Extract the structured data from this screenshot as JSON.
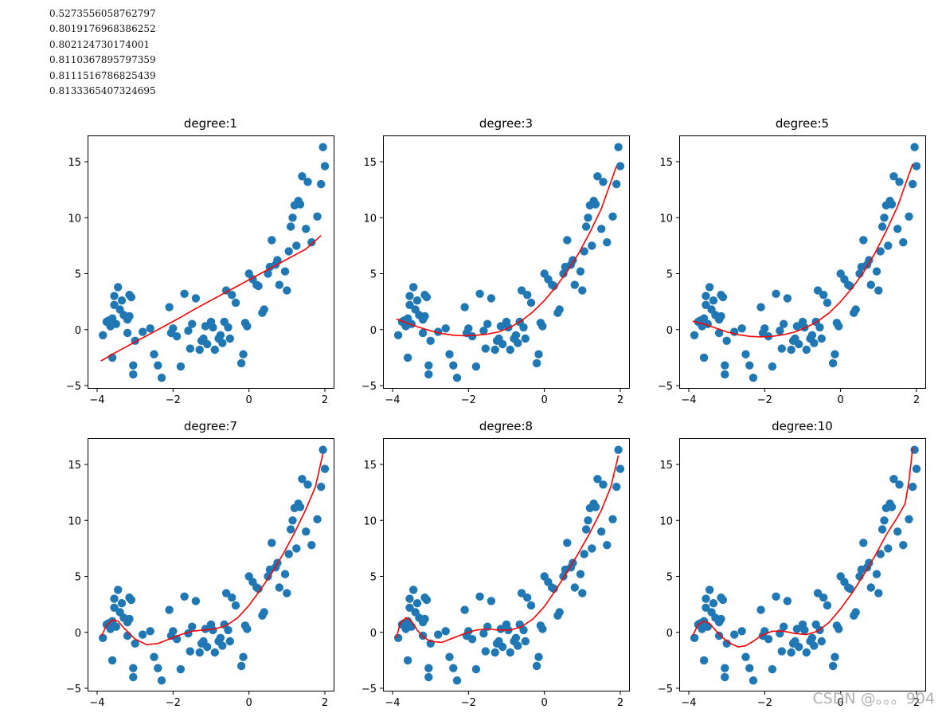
{
  "console_output": [
    "0.5273556058762797",
    "0.8019176968386252",
    "0.802124730174001",
    "0.8110367895797359",
    "0.8111516786825439",
    "0.8133365407324695"
  ],
  "watermark": "CSDN @。。。904",
  "colors": {
    "points": "#1f77b4",
    "fit_line": "#ff0000",
    "axes": "#000000"
  },
  "chart_data": [
    {
      "type": "scatter+line",
      "title": "degree:1",
      "xlim": [
        -4,
        2
      ],
      "ylim": [
        -5,
        17
      ],
      "xticks": [
        -4,
        -2,
        0,
        2
      ],
      "xtick_labels": [
        "−4",
        "−2",
        "0",
        "2"
      ],
      "yticks": [
        -5,
        0,
        5,
        10,
        15
      ],
      "ytick_labels": [
        "−5",
        "0",
        "5",
        "10",
        "15"
      ],
      "fit": {
        "x": [
          -3.9,
          -3.6,
          -3.3,
          -3.0,
          -2.7,
          -2.4,
          -2.1,
          -1.8,
          -1.5,
          -1.2,
          -0.9,
          -0.6,
          -0.3,
          0,
          0.3,
          0.6,
          0.9,
          1.2,
          1.5,
          1.9
        ],
        "y": [
          -2.8,
          -2.2,
          -1.65,
          -1.1,
          -0.55,
          0.0,
          0.55,
          1.1,
          1.7,
          2.25,
          2.8,
          3.35,
          3.9,
          4.45,
          5.0,
          5.55,
          6.1,
          6.65,
          7.2,
          8.4
        ]
      }
    },
    {
      "type": "scatter+line",
      "title": "degree:3",
      "xlim": [
        -4,
        2
      ],
      "ylim": [
        -5,
        17
      ],
      "xticks": [
        -4,
        -2,
        0,
        2
      ],
      "xtick_labels": [
        "−4",
        "−2",
        "0",
        "2"
      ],
      "yticks": [
        -5,
        0,
        5,
        10,
        15
      ],
      "ytick_labels": [
        "−5",
        "0",
        "5",
        "10",
        "15"
      ],
      "fit": {
        "x": [
          -3.9,
          -3.6,
          -3.3,
          -3.0,
          -2.7,
          -2.4,
          -2.1,
          -1.8,
          -1.5,
          -1.2,
          -0.9,
          -0.6,
          -0.3,
          0,
          0.3,
          0.6,
          0.9,
          1.2,
          1.5,
          1.9
        ],
        "y": [
          0.95,
          0.55,
          0.2,
          -0.1,
          -0.35,
          -0.5,
          -0.55,
          -0.5,
          -0.4,
          -0.2,
          0.2,
          0.8,
          1.6,
          2.6,
          3.8,
          5.2,
          6.8,
          8.7,
          10.8,
          14.6
        ]
      }
    },
    {
      "type": "scatter+line",
      "title": "degree:5",
      "xlim": [
        -4,
        2
      ],
      "ylim": [
        -5,
        17
      ],
      "xticks": [
        -4,
        -2,
        0,
        2
      ],
      "xtick_labels": [
        "−4",
        "−2",
        "0",
        "2"
      ],
      "yticks": [
        -5,
        0,
        5,
        10,
        15
      ],
      "ytick_labels": [
        "−5",
        "0",
        "5",
        "10",
        "15"
      ],
      "fit": {
        "x": [
          -3.9,
          -3.6,
          -3.3,
          -3.0,
          -2.7,
          -2.4,
          -2.1,
          -1.8,
          -1.5,
          -1.2,
          -0.9,
          -0.6,
          -0.3,
          0,
          0.3,
          0.6,
          0.9,
          1.2,
          1.5,
          1.9
        ],
        "y": [
          0.75,
          0.5,
          0.15,
          -0.2,
          -0.45,
          -0.6,
          -0.65,
          -0.6,
          -0.45,
          -0.2,
          0.2,
          0.75,
          1.5,
          2.5,
          3.7,
          5.1,
          6.8,
          8.8,
          11.0,
          14.8
        ]
      }
    },
    {
      "type": "scatter+line",
      "title": "degree:7",
      "xlim": [
        -4,
        2
      ],
      "ylim": [
        -5,
        17
      ],
      "xticks": [
        -4,
        -2,
        0,
        2
      ],
      "xtick_labels": [
        "−4",
        "−2",
        "0",
        "2"
      ],
      "yticks": [
        -5,
        0,
        5,
        10,
        15
      ],
      "ytick_labels": [
        "−5",
        "0",
        "5",
        "10",
        "15"
      ],
      "fit": {
        "x": [
          -3.9,
          -3.75,
          -3.6,
          -3.45,
          -3.3,
          -3.0,
          -2.7,
          -2.4,
          -2.1,
          -1.8,
          -1.5,
          -1.2,
          -0.9,
          -0.6,
          -0.3,
          0,
          0.3,
          0.6,
          0.9,
          1.2,
          1.5,
          1.75,
          1.95
        ],
        "y": [
          -0.4,
          0.6,
          1.1,
          1.0,
          0.4,
          -0.6,
          -1.1,
          -1.0,
          -0.6,
          -0.2,
          0.1,
          0.2,
          0.3,
          0.6,
          1.3,
          2.4,
          3.8,
          5.3,
          7.0,
          8.9,
          11.0,
          13.0,
          16.0
        ]
      }
    },
    {
      "type": "scatter+line",
      "title": "degree:8",
      "xlim": [
        -4,
        2
      ],
      "ylim": [
        -5,
        17
      ],
      "xticks": [
        -4,
        -2,
        0,
        2
      ],
      "xtick_labels": [
        "−4",
        "−2",
        "0",
        "2"
      ],
      "yticks": [
        -5,
        0,
        5,
        10,
        15
      ],
      "ytick_labels": [
        "−5",
        "0",
        "5",
        "10",
        "15"
      ],
      "fit": {
        "x": [
          -3.9,
          -3.8,
          -3.65,
          -3.5,
          -3.35,
          -3.2,
          -3.0,
          -2.7,
          -2.4,
          -2.1,
          -1.8,
          -1.5,
          -1.2,
          -0.9,
          -0.6,
          -0.3,
          0,
          0.3,
          0.6,
          0.9,
          1.2,
          1.5,
          1.75,
          1.95
        ],
        "y": [
          -0.5,
          0.8,
          1.3,
          1.0,
          0.2,
          -0.4,
          -0.8,
          -0.9,
          -0.5,
          -0.1,
          0.2,
          0.3,
          0.2,
          0.2,
          0.5,
          1.2,
          2.3,
          3.8,
          5.4,
          7.1,
          8.9,
          10.9,
          13.0,
          15.8
        ]
      }
    },
    {
      "type": "scatter+line",
      "title": "degree:10",
      "xlim": [
        -4,
        2
      ],
      "ylim": [
        -5,
        17
      ],
      "xticks": [
        -4,
        -2,
        0,
        2
      ],
      "xtick_labels": [
        "−4",
        "−2",
        "0",
        "2"
      ],
      "yticks": [
        -5,
        0,
        5,
        10,
        15
      ],
      "ytick_labels": [
        "−5",
        "0",
        "5",
        "10",
        "15"
      ],
      "fit": {
        "x": [
          -3.9,
          -3.75,
          -3.6,
          -3.45,
          -3.3,
          -3.1,
          -2.9,
          -2.7,
          -2.5,
          -2.3,
          -2.1,
          -1.8,
          -1.5,
          -1.2,
          -0.9,
          -0.6,
          -0.3,
          0,
          0.3,
          0.6,
          0.9,
          1.2,
          1.5,
          1.7,
          1.8,
          1.9
        ],
        "y": [
          -0.3,
          0.7,
          1.0,
          0.8,
          0.2,
          -0.5,
          -1.0,
          -1.3,
          -1.2,
          -0.8,
          -0.3,
          0.1,
          0.1,
          -0.1,
          -0.2,
          0.1,
          0.9,
          2.1,
          3.5,
          5.1,
          6.8,
          8.7,
          10.3,
          11.5,
          13.5,
          16.5
        ]
      }
    }
  ],
  "scatter_points": {
    "x": [
      -3.85,
      -3.75,
      -3.7,
      -3.65,
      -3.6,
      -3.6,
      -3.55,
      -3.55,
      -3.5,
      -3.45,
      -3.4,
      -3.35,
      -3.3,
      -3.2,
      -3.2,
      -3.15,
      -3.15,
      -3.1,
      -3.05,
      -3.05,
      -3.0,
      -2.8,
      -2.6,
      -2.5,
      -2.4,
      -2.3,
      -2.1,
      -2.05,
      -2.0,
      -1.9,
      -1.8,
      -1.7,
      -1.6,
      -1.55,
      -1.5,
      -1.4,
      -1.3,
      -1.25,
      -1.2,
      -1.15,
      -1.1,
      -1.0,
      -0.95,
      -0.9,
      -0.8,
      -0.75,
      -0.7,
      -0.65,
      -0.6,
      -0.55,
      -0.5,
      -0.45,
      -0.35,
      -0.2,
      -0.15,
      -0.1,
      -0.05,
      0,
      0.1,
      0.2,
      0.25,
      0.35,
      0.4,
      0.5,
      0.55,
      0.6,
      0.7,
      0.75,
      0.8,
      0.95,
      1.0,
      1.05,
      1.1,
      1.15,
      1.2,
      1.25,
      1.3,
      1.35,
      1.4,
      1.5,
      1.55,
      1.65,
      1.8,
      1.9,
      1.95,
      2.0
    ],
    "y": [
      -0.5,
      0.7,
      0.8,
      0.3,
      1.0,
      -2.5,
      2.2,
      3.0,
      0.5,
      3.8,
      1.8,
      2.6,
      1.3,
      -0.3,
      0.9,
      1.2,
      3.1,
      2.9,
      -3.2,
      -4.0,
      -1.0,
      -0.2,
      0.1,
      -2.2,
      -3.2,
      -4.3,
      2.0,
      -0.3,
      0.1,
      -0.6,
      -3.3,
      3.2,
      -0.1,
      -1.7,
      0.5,
      2.8,
      -1.8,
      -1.0,
      -0.8,
      0.3,
      -1.3,
      0.7,
      0.2,
      -1.8,
      -0.8,
      -0.5,
      -1.2,
      0.7,
      3.5,
      0.2,
      -0.8,
      3.1,
      2.4,
      -3.0,
      -2.2,
      0.6,
      0.3,
      5.0,
      4.5,
      4.0,
      3.9,
      1.5,
      1.8,
      5.0,
      5.6,
      8.0,
      5.8,
      6.2,
      4.0,
      5.2,
      3.5,
      7.0,
      9.2,
      10.0,
      11.1,
      7.5,
      11.5,
      11.2,
      13.7,
      9.0,
      13.2,
      7.8,
      10.1,
      13.0,
      16.3,
      14.6
    ]
  }
}
